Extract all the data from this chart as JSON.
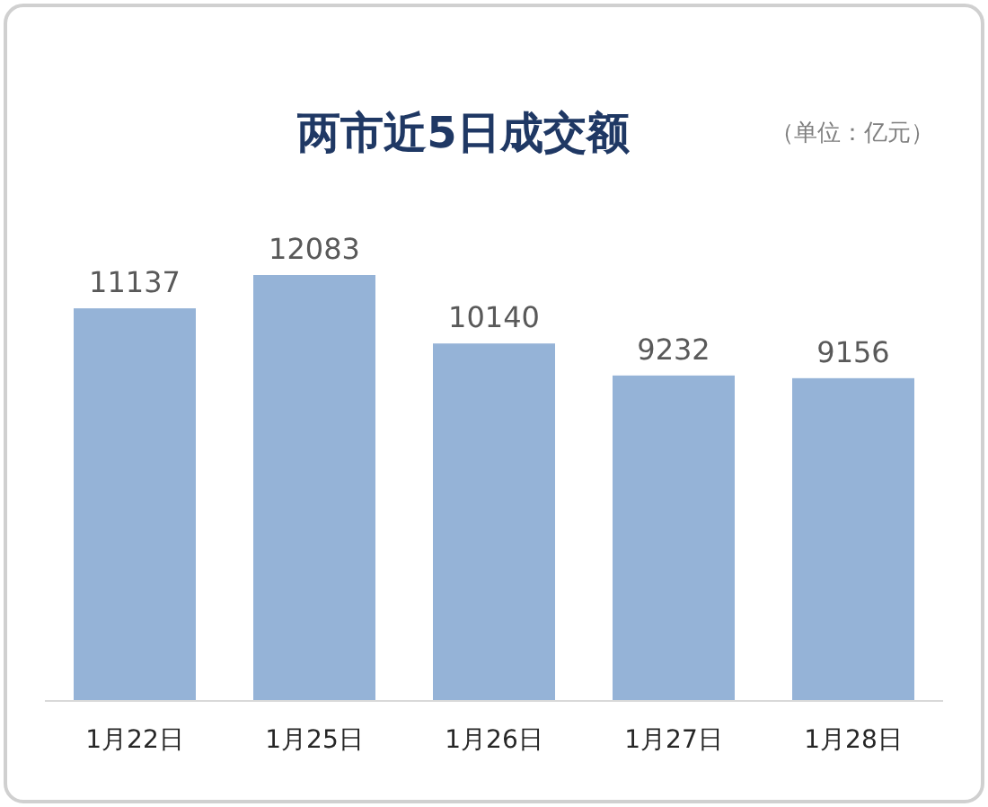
{
  "chart_data": {
    "type": "bar",
    "title": "两市近5日成交额",
    "annotations": [
      "（单位：亿元）"
    ],
    "categories": [
      "1月22日",
      "1月25日",
      "1月26日",
      "1月27日",
      "1月28日"
    ],
    "values": [
      11137,
      12083,
      10140,
      9232,
      9156
    ],
    "color": "#95b3d7",
    "data_labels": true
  }
}
